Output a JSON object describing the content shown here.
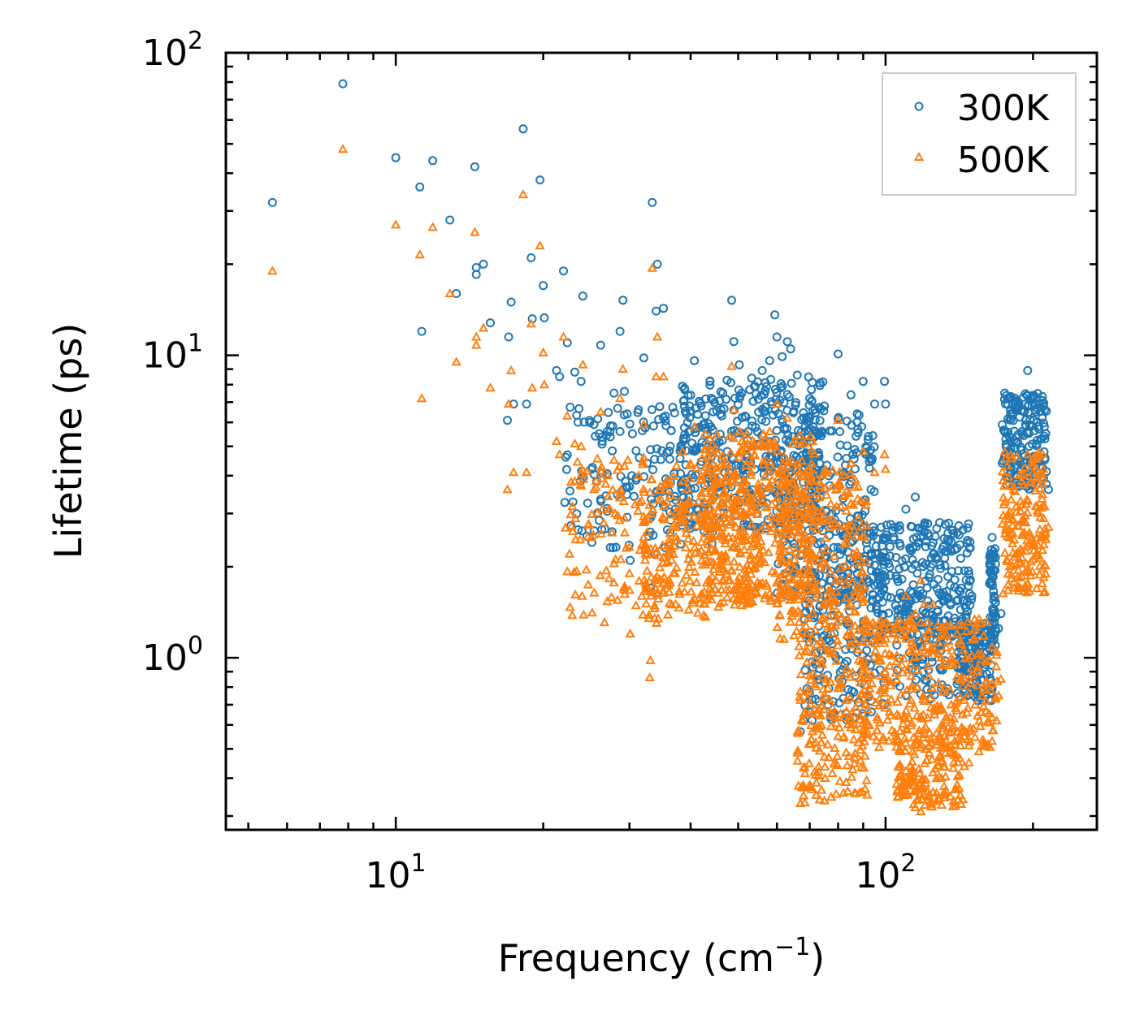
{
  "chart_data": {
    "type": "scatter",
    "title": "",
    "xlabel": "Frequency (cm",
    "xlabel_sup": "−1",
    "xlabel_end": ")",
    "ylabel": "Lifetime (ps)",
    "xscale": "log",
    "yscale": "log",
    "xlim": [
      4.5,
      270
    ],
    "ylim": [
      0.27,
      100
    ],
    "x_ticks": [
      {
        "value": 10,
        "base": "10",
        "exp": "1"
      },
      {
        "value": 100,
        "base": "10",
        "exp": "2"
      }
    ],
    "y_ticks": [
      {
        "value": 1,
        "base": "10",
        "exp": "0"
      },
      {
        "value": 10,
        "base": "10",
        "exp": "1"
      },
      {
        "value": 100,
        "base": "10",
        "exp": "2"
      }
    ],
    "legend_position": "top-right",
    "series": [
      {
        "name": "300K",
        "marker": "circle",
        "color": "#1f77b4",
        "points": [
          [
            5.6,
            32
          ],
          [
            7.8,
            79
          ],
          [
            10,
            45
          ],
          [
            11.2,
            36
          ],
          [
            11.3,
            12
          ],
          [
            11.9,
            44
          ],
          [
            12.9,
            28
          ],
          [
            13.3,
            16
          ],
          [
            14.5,
            42
          ],
          [
            14.6,
            19.5
          ],
          [
            14.6,
            18.5
          ],
          [
            15.1,
            20
          ],
          [
            15.6,
            12.8
          ],
          [
            16.9,
            6.1
          ],
          [
            17,
            11.5
          ],
          [
            17.2,
            15
          ],
          [
            17.4,
            6.9
          ],
          [
            18.2,
            56
          ],
          [
            18.5,
            6.9
          ],
          [
            18.9,
            21
          ],
          [
            19,
            13.2
          ],
          [
            19.7,
            38
          ],
          [
            20,
            17
          ],
          [
            20.1,
            13.3
          ],
          [
            21.3,
            8.9
          ],
          [
            21.6,
            8.5
          ],
          [
            22,
            19
          ],
          [
            22.4,
            11
          ],
          [
            23.2,
            8.8
          ],
          [
            23.9,
            8.2
          ],
          [
            24.1,
            15.7
          ],
          [
            25.1,
            4.2
          ],
          [
            25.4,
            5.9
          ],
          [
            26.2,
            10.8
          ],
          [
            26.4,
            5.2
          ],
          [
            27.9,
            7.5
          ],
          [
            28.7,
            12
          ],
          [
            28.7,
            5.6
          ],
          [
            29.1,
            15.2
          ],
          [
            29.3,
            7.6
          ],
          [
            30.1,
            2.1
          ],
          [
            31.3,
            6.6
          ],
          [
            32.1,
            9.8
          ],
          [
            32.6,
            4.4
          ],
          [
            33.1,
            1.7
          ],
          [
            33.4,
            32
          ],
          [
            33.8,
            2.2
          ],
          [
            34,
            14
          ],
          [
            34.2,
            20
          ],
          [
            35.2,
            14.3
          ],
          [
            36.4,
            3.8
          ],
          [
            37.2,
            3.1
          ],
          [
            38.5,
            7.9
          ],
          [
            39.1,
            5.3
          ],
          [
            40.7,
            9.6
          ],
          [
            44,
            5.8
          ],
          [
            46,
            6.4
          ],
          [
            48.5,
            15.2
          ],
          [
            49,
            11.1
          ],
          [
            50.3,
            9.3
          ],
          [
            54,
            7.9
          ],
          [
            56,
            8.9
          ],
          [
            58,
            9.6
          ],
          [
            59.4,
            13.6
          ],
          [
            60,
            11.5
          ],
          [
            61.5,
            9.9
          ],
          [
            63,
            11.1
          ],
          [
            64,
            10.5
          ],
          [
            66,
            8.6
          ],
          [
            70,
            7.2
          ],
          [
            75,
            6.8
          ],
          [
            80,
            10.1
          ],
          [
            85,
            7.4
          ],
          [
            90,
            8.2
          ],
          [
            95,
            6.9
          ],
          [
            99.5,
            8.2
          ],
          [
            100,
            6.9
          ],
          [
            104,
            2.5
          ],
          [
            110,
            3.1
          ],
          [
            115,
            3.4
          ],
          [
            118,
            2.5
          ],
          [
            120,
            2.6
          ],
          [
            125,
            2.2
          ],
          [
            130,
            1.6
          ],
          [
            140,
            2.3
          ],
          [
            150,
            1.6
          ],
          [
            160,
            1.3
          ],
          [
            165,
            2.5
          ],
          [
            175,
            7.5
          ],
          [
            180,
            6.4
          ],
          [
            190,
            5.6
          ],
          [
            195,
            8.9
          ],
          [
            200,
            7.2
          ],
          [
            210,
            6.9
          ],
          [
            215,
            3.6
          ],
          [
            67,
            0.57
          ],
          [
            68,
            0.62
          ],
          [
            70,
            0.66
          ],
          [
            72,
            0.73
          ],
          [
            75,
            0.83
          ],
          [
            95,
            0.89
          ],
          [
            105,
            0.83
          ],
          [
            110,
            0.75
          ],
          [
            118,
            0.76
          ],
          [
            130,
            0.79
          ],
          [
            140,
            0.82
          ],
          [
            148,
            0.87
          ],
          [
            155,
            0.88
          ],
          [
            160,
            0.95
          ],
          [
            165,
            1.05
          ],
          [
            170,
            1.25
          ],
          [
            172,
            1.4
          ]
        ],
        "clusters": [
          {
            "xmin": 22,
            "xmax": 45,
            "ylo": 2.3,
            "yhi": 6.8,
            "n": 160
          },
          {
            "xmin": 38,
            "xmax": 75,
            "ylo": 2.6,
            "yhi": 8.5,
            "n": 380
          },
          {
            "xmin": 60,
            "xmax": 95,
            "ylo": 1.6,
            "yhi": 6.5,
            "n": 260
          },
          {
            "xmin": 68,
            "xmax": 100,
            "ylo": 0.62,
            "yhi": 2.3,
            "n": 200
          },
          {
            "xmin": 95,
            "xmax": 150,
            "ylo": 1.15,
            "yhi": 2.8,
            "n": 260
          },
          {
            "xmin": 105,
            "xmax": 135,
            "ylo": 0.72,
            "yhi": 1.7,
            "n": 90
          },
          {
            "xmin": 140,
            "xmax": 165,
            "ylo": 0.72,
            "yhi": 1.3,
            "n": 130
          },
          {
            "xmin": 163,
            "xmax": 168,
            "ylo": 1.05,
            "yhi": 2.3,
            "n": 70
          },
          {
            "xmin": 173,
            "xmax": 213,
            "ylo": 3.6,
            "yhi": 7.5,
            "n": 180
          }
        ]
      },
      {
        "name": "500K",
        "marker": "triangle",
        "color": "#ff7f0e",
        "points": [
          [
            5.6,
            19
          ],
          [
            7.8,
            48
          ],
          [
            10,
            27
          ],
          [
            11.2,
            21.5
          ],
          [
            11.3,
            7.2
          ],
          [
            11.9,
            26.5
          ],
          [
            12.9,
            16
          ],
          [
            13.3,
            9.5
          ],
          [
            14.5,
            25.5
          ],
          [
            14.6,
            11.5
          ],
          [
            14.6,
            10.8
          ],
          [
            15.1,
            12.3
          ],
          [
            15.6,
            7.8
          ],
          [
            16.9,
            3.6
          ],
          [
            17,
            6.9
          ],
          [
            17.2,
            8.9
          ],
          [
            17.4,
            4.1
          ],
          [
            18.2,
            34
          ],
          [
            18.5,
            4.1
          ],
          [
            18.9,
            12.7
          ],
          [
            19,
            7.8
          ],
          [
            19.7,
            23
          ],
          [
            20,
            10.2
          ],
          [
            20.1,
            8
          ],
          [
            21.3,
            5.2
          ],
          [
            21.6,
            4.7
          ],
          [
            22,
            11.5
          ],
          [
            22.4,
            6.3
          ],
          [
            23.2,
            5.1
          ],
          [
            23.9,
            5
          ],
          [
            24.1,
            9.3
          ],
          [
            25.1,
            2.5
          ],
          [
            25.4,
            3.6
          ],
          [
            26.2,
            6.5
          ],
          [
            26.4,
            3.1
          ],
          [
            27.9,
            4.5
          ],
          [
            28.7,
            7.2
          ],
          [
            28.7,
            3.5
          ],
          [
            29.1,
            9
          ],
          [
            29.3,
            4.3
          ],
          [
            30,
            1.9
          ],
          [
            30.1,
            1.2
          ],
          [
            31.3,
            4
          ],
          [
            32.1,
            5.9
          ],
          [
            32.6,
            2.6
          ],
          [
            33.1,
            0.98
          ],
          [
            33,
            0.86
          ],
          [
            33.4,
            19.4
          ],
          [
            33.8,
            1.35
          ],
          [
            34,
            8.5
          ],
          [
            34.2,
            11.5
          ],
          [
            35.2,
            8.5
          ],
          [
            36.4,
            2.3
          ],
          [
            37.2,
            1.9
          ],
          [
            38.5,
            4.8
          ],
          [
            39.1,
            3.2
          ],
          [
            40.7,
            5.8
          ],
          [
            44,
            3.5
          ],
          [
            48.5,
            9.2
          ],
          [
            49,
            6.6
          ],
          [
            50.3,
            5.6
          ],
          [
            54,
            4.7
          ],
          [
            58,
            5.6
          ],
          [
            60,
            6.9
          ],
          [
            63,
            6.2
          ],
          [
            70,
            4.2
          ],
          [
            75,
            4.1
          ],
          [
            80,
            6.1
          ],
          [
            85,
            4.4
          ],
          [
            90,
            4.8
          ],
          [
            95,
            4.1
          ],
          [
            99.5,
            4.7
          ],
          [
            100,
            4.2
          ],
          [
            104,
            1.2
          ],
          [
            110,
            1.6
          ],
          [
            115,
            1.4
          ],
          [
            118,
            1.8
          ],
          [
            120,
            1.5
          ],
          [
            125,
            1.5
          ],
          [
            130,
            1
          ],
          [
            140,
            1.2
          ],
          [
            150,
            0.92
          ],
          [
            160,
            0.72
          ],
          [
            165,
            0.82
          ],
          [
            175,
            4.8
          ],
          [
            180,
            3.7
          ],
          [
            190,
            3.2
          ],
          [
            195,
            4.7
          ],
          [
            200,
            4.4
          ],
          [
            210,
            4.2
          ],
          [
            215,
            2.7
          ],
          [
            67,
            0.33
          ],
          [
            68,
            0.35
          ],
          [
            70,
            0.38
          ],
          [
            72,
            0.41
          ],
          [
            75,
            0.47
          ],
          [
            80,
            0.55
          ],
          [
            105,
            0.55
          ],
          [
            110,
            0.4
          ],
          [
            115,
            0.32
          ],
          [
            118,
            0.31
          ],
          [
            125,
            0.36
          ],
          [
            130,
            0.4
          ],
          [
            140,
            0.38
          ],
          [
            148,
            0.45
          ],
          [
            155,
            0.49
          ],
          [
            160,
            0.51
          ],
          [
            165,
            0.53
          ],
          [
            170,
            0.75
          ],
          [
            172,
            0.85
          ]
        ],
        "clusters": [
          {
            "xmin": 22,
            "xmax": 45,
            "ylo": 1.3,
            "yhi": 4.6,
            "n": 170
          },
          {
            "xmin": 32,
            "xmax": 55,
            "ylo": 1.45,
            "yhi": 4,
            "n": 220
          },
          {
            "xmin": 42,
            "xmax": 72,
            "ylo": 1.5,
            "yhi": 5.5,
            "n": 380
          },
          {
            "xmin": 60,
            "xmax": 92,
            "ylo": 1.15,
            "yhi": 4.2,
            "n": 260
          },
          {
            "xmin": 66,
            "xmax": 92,
            "ylo": 0.33,
            "yhi": 1.15,
            "n": 200
          },
          {
            "xmin": 90,
            "xmax": 170,
            "ylo": 0.5,
            "yhi": 1.35,
            "n": 320
          },
          {
            "xmin": 105,
            "xmax": 145,
            "ylo": 0.32,
            "yhi": 0.6,
            "n": 160
          },
          {
            "xmin": 173,
            "xmax": 213,
            "ylo": 1.6,
            "yhi": 4.8,
            "n": 180
          }
        ]
      }
    ]
  }
}
